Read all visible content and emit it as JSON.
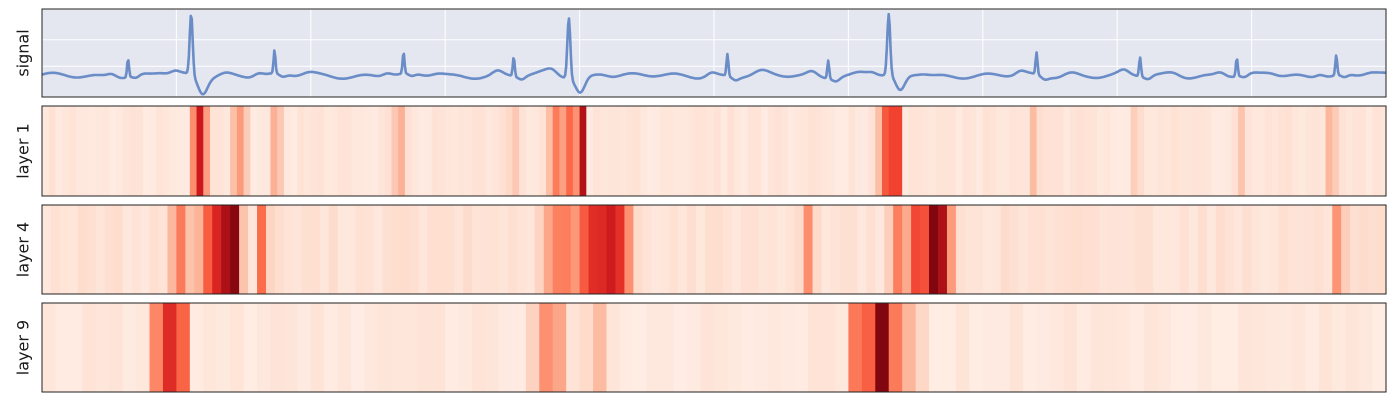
{
  "chart_data": [
    {
      "type": "line",
      "panel": "signal",
      "ylabel": "signal",
      "background": "#e5e7f0",
      "grid": true,
      "line_color": "#6a8cc7",
      "x_ticks_visible": false,
      "y_ticks_visible": false,
      "x": [
        0,
        1,
        2,
        3,
        4,
        5,
        6,
        7,
        8,
        9,
        10,
        11,
        12,
        13,
        14,
        15,
        16,
        17,
        18,
        19,
        20,
        21,
        22,
        23,
        24,
        25,
        26,
        27,
        28,
        29,
        30,
        31,
        32,
        33,
        34,
        35,
        36,
        37,
        38,
        39,
        40,
        41,
        42,
        43,
        44,
        45,
        46,
        47,
        48,
        49,
        50,
        51,
        52,
        53,
        54,
        55,
        56,
        57,
        58,
        59,
        60,
        61,
        62,
        63,
        64,
        65,
        66,
        67,
        68,
        69,
        70,
        71,
        72,
        73,
        74,
        75,
        76,
        77,
        78,
        79,
        80,
        81,
        82,
        83,
        84,
        85,
        86,
        87,
        88,
        89,
        90,
        91,
        92,
        93,
        94,
        95,
        96,
        97,
        98,
        99,
        100
      ],
      "y": [
        0.2,
        0.2,
        0.2,
        0.2,
        0.2,
        0.21,
        0.22,
        0.2,
        0.2,
        0.2,
        0.2,
        0.2,
        0.2,
        0.2,
        0.2,
        0.2,
        0.2,
        0.2,
        0.2,
        0.2,
        0.2,
        0.2,
        0.2,
        0.2,
        0.2,
        0.2,
        0.2,
        0.2,
        0.2,
        0.2,
        0.2,
        0.2,
        0.2,
        0.2,
        0.2,
        0.2,
        0.2,
        0.2,
        0.2,
        0.2,
        0.2,
        0.2,
        0.2,
        0.2,
        0.2,
        0.2,
        0.2,
        0.2,
        0.2,
        0.2,
        0.2,
        0.2,
        0.2,
        0.2,
        0.2,
        0.2,
        0.2,
        0.2,
        0.2,
        0.2,
        0.2,
        0.2,
        0.2,
        0.2,
        0.2,
        0.2,
        0.2,
        0.2,
        0.2,
        0.2,
        0.2,
        0.2,
        0.2,
        0.2,
        0.2,
        0.2,
        0.2,
        0.2,
        0.2,
        0.2,
        0.2,
        0.2,
        0.2,
        0.2,
        0.2,
        0.2,
        0.2,
        0.2,
        0.2,
        0.2,
        0.2,
        0.2,
        0.2,
        0.2,
        0.2,
        0.2,
        0.2,
        0.2,
        0.2,
        0.2,
        0.2
      ],
      "spikes": [
        {
          "x": 6.4,
          "h": 0.3
        },
        {
          "x": 11.1,
          "h": 1.0,
          "dip": true
        },
        {
          "x": 17.3,
          "h": 0.38
        },
        {
          "x": 26.9,
          "h": 0.35
        },
        {
          "x": 35.1,
          "h": 0.32
        },
        {
          "x": 39.2,
          "h": 1.0,
          "dip": true
        },
        {
          "x": 51.0,
          "h": 0.36
        },
        {
          "x": 58.5,
          "h": 0.3
        },
        {
          "x": 63.0,
          "h": 1.0,
          "dip": true
        },
        {
          "x": 74.0,
          "h": 0.36
        },
        {
          "x": 81.7,
          "h": 0.32
        },
        {
          "x": 88.9,
          "h": 0.3
        },
        {
          "x": 96.3,
          "h": 0.33
        }
      ],
      "ylim": [
        -0.35,
        1.1
      ]
    },
    {
      "type": "heatmap",
      "panel": "layer 1",
      "ylabel": "layer 1",
      "colormap": "Reds",
      "n_cols": 200,
      "peaks": [
        {
          "x": 11.6,
          "v": 0.65,
          "w": 0.35
        },
        {
          "x": 11.9,
          "v": 0.9,
          "w": 0.25
        },
        {
          "x": 14.7,
          "v": 0.35,
          "w": 0.5
        },
        {
          "x": 17.4,
          "v": 0.3,
          "w": 0.4
        },
        {
          "x": 26.6,
          "v": 0.3,
          "w": 0.4
        },
        {
          "x": 35.1,
          "v": 0.22,
          "w": 0.4
        },
        {
          "x": 38.2,
          "v": 0.45,
          "w": 0.4
        },
        {
          "x": 39.1,
          "v": 0.55,
          "w": 0.35
        },
        {
          "x": 40.1,
          "v": 1.0,
          "w": 0.25
        },
        {
          "x": 62.7,
          "v": 0.55,
          "w": 0.35
        },
        {
          "x": 63.5,
          "v": 1.0,
          "w": 0.25
        },
        {
          "x": 73.8,
          "v": 0.25,
          "w": 0.4
        },
        {
          "x": 81.4,
          "v": 0.2,
          "w": 0.4
        },
        {
          "x": 89.2,
          "v": 0.22,
          "w": 0.4
        },
        {
          "x": 95.9,
          "v": 0.28,
          "w": 0.4
        }
      ],
      "base": 0.06
    },
    {
      "type": "heatmap",
      "panel": "layer 4",
      "ylabel": "layer 4",
      "colormap": "Reds",
      "n_cols": 150,
      "peaks": [
        {
          "x": 10.3,
          "v": 0.45,
          "w": 0.6
        },
        {
          "x": 12.5,
          "v": 0.55,
          "w": 0.7
        },
        {
          "x": 13.2,
          "v": 0.8,
          "w": 0.4
        },
        {
          "x": 13.8,
          "v": 0.9,
          "w": 0.4
        },
        {
          "x": 14.4,
          "v": 0.95,
          "w": 0.35
        },
        {
          "x": 16.4,
          "v": 0.5,
          "w": 0.4
        },
        {
          "x": 38.7,
          "v": 0.45,
          "w": 1.2
        },
        {
          "x": 41.4,
          "v": 0.7,
          "w": 1.5
        },
        {
          "x": 42.5,
          "v": 0.75,
          "w": 1.0
        },
        {
          "x": 57.1,
          "v": 0.4,
          "w": 0.4
        },
        {
          "x": 63.8,
          "v": 0.45,
          "w": 0.6
        },
        {
          "x": 65.3,
          "v": 0.65,
          "w": 0.7
        },
        {
          "x": 66.3,
          "v": 0.95,
          "w": 0.5
        },
        {
          "x": 67.0,
          "v": 0.85,
          "w": 0.5
        },
        {
          "x": 96.5,
          "v": 0.4,
          "w": 0.4
        }
      ],
      "base": 0.08
    },
    {
      "type": "heatmap",
      "panel": "layer 9",
      "ylabel": "layer 9",
      "colormap": "Reds",
      "n_cols": 100,
      "peaks": [
        {
          "x": 9.0,
          "v": 0.5,
          "w": 0.8
        },
        {
          "x": 9.9,
          "v": 0.85,
          "w": 0.6
        },
        {
          "x": 37.8,
          "v": 0.4,
          "w": 1.0
        },
        {
          "x": 41.2,
          "v": 0.28,
          "w": 0.6
        },
        {
          "x": 61.1,
          "v": 0.6,
          "w": 0.8
        },
        {
          "x": 62.3,
          "v": 1.0,
          "w": 0.6
        },
        {
          "x": 63.5,
          "v": 0.45,
          "w": 0.6
        },
        {
          "x": 64.8,
          "v": 0.3,
          "w": 0.6
        }
      ],
      "base": 0.05
    }
  ]
}
